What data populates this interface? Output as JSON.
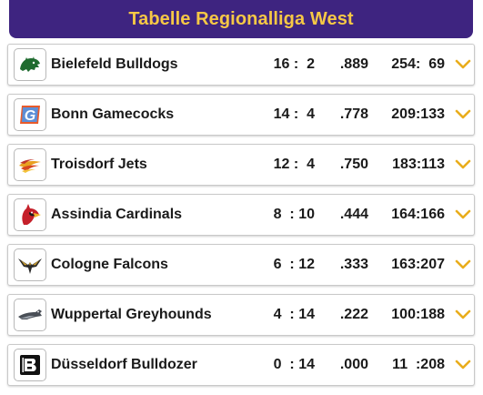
{
  "header": {
    "title": "Tabelle Regionalliga West"
  },
  "colors": {
    "header_bg": "#3e2480",
    "header_text": "#f6c845",
    "chevron": "#e9ad1c"
  },
  "teams": [
    {
      "name": "Bielefeld Bulldogs",
      "record": "16 :  2",
      "pct": ".889",
      "points": "254:  69",
      "logo_icon": "bulldog-icon"
    },
    {
      "name": "Bonn Gamecocks",
      "record": "14 :  4",
      "pct": ".778",
      "points": "209:133",
      "logo_icon": "letter-g-icon"
    },
    {
      "name": "Troisdorf Jets",
      "record": "12 :  4",
      "pct": ".750",
      "points": "183:113",
      "logo_icon": "jet-icon"
    },
    {
      "name": "Assindia Cardinals",
      "record": "8  : 10",
      "pct": ".444",
      "points": "164:166",
      "logo_icon": "cardinal-icon"
    },
    {
      "name": "Cologne Falcons",
      "record": "6  : 12",
      "pct": ".333",
      "points": "163:207",
      "logo_icon": "falcon-icon"
    },
    {
      "name": "Wuppertal Greyhounds",
      "record": "4  : 14",
      "pct": ".222",
      "points": "100:188",
      "logo_icon": "greyhound-icon"
    },
    {
      "name": "Düsseldorf Bulldozer",
      "record": "0  : 14",
      "pct": ".000",
      "points": "11  :208",
      "logo_icon": "letter-b-icon"
    }
  ]
}
